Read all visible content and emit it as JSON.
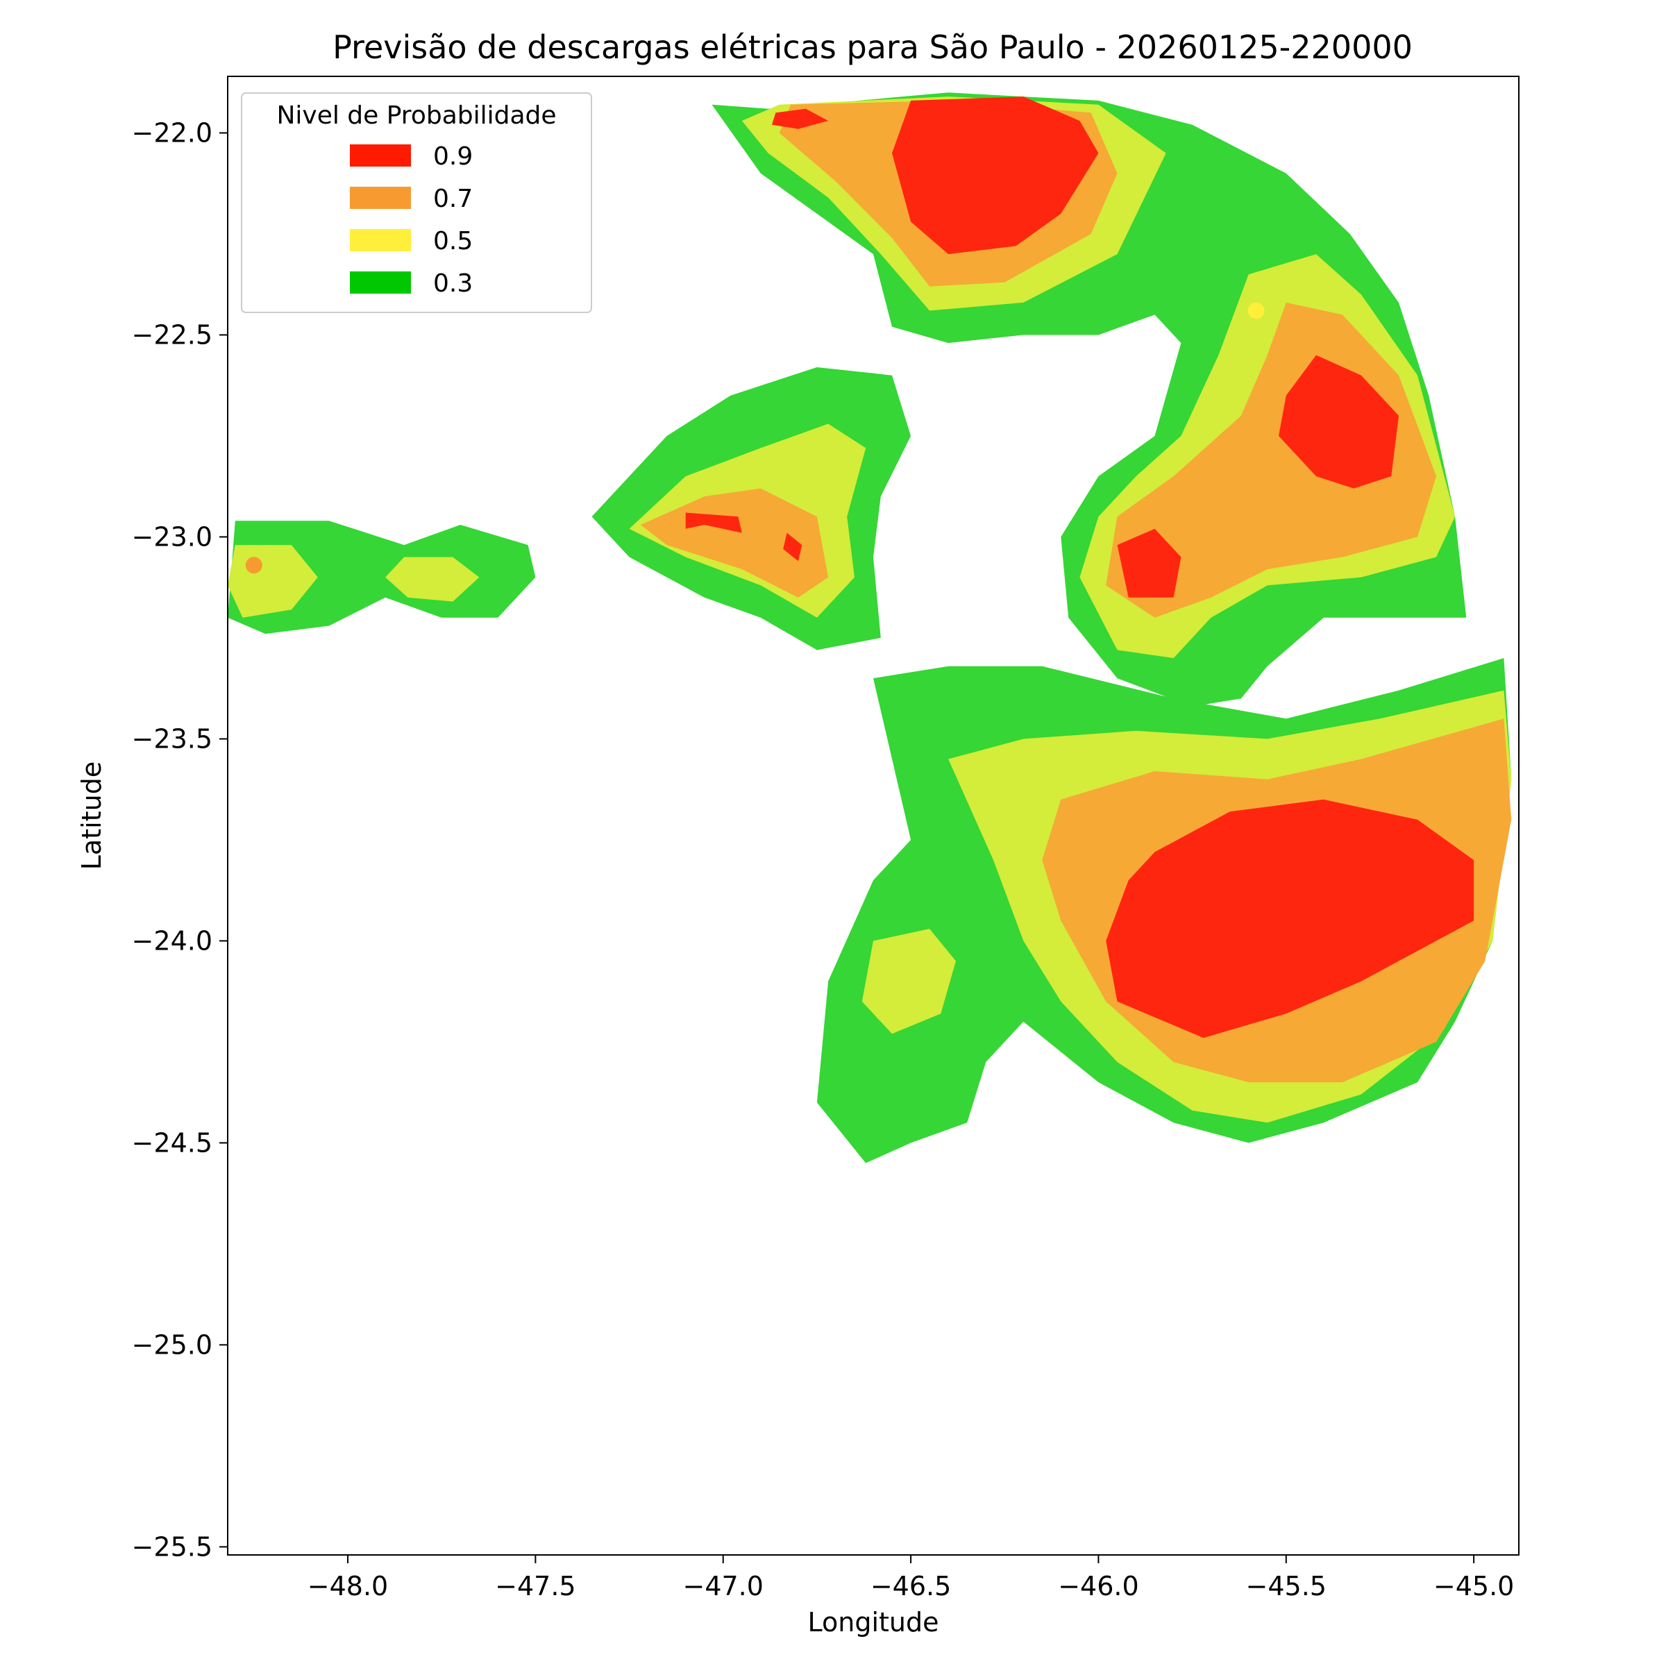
{
  "chart_data": {
    "type": "heatmap",
    "title": "Previsão de descargas elétricas para São Paulo - 20260125-220000",
    "xlabel": "Longitude",
    "ylabel": "Latitude",
    "xlim": [
      -48.32,
      -44.88
    ],
    "ylim": [
      -25.52,
      -21.86
    ],
    "x_ticks": [
      -48.0,
      -47.5,
      -47.0,
      -46.5,
      -46.0,
      -45.5,
      -45.0
    ],
    "y_ticks": [
      -22.0,
      -22.5,
      -23.0,
      -23.5,
      -24.0,
      -24.5,
      -25.0,
      -25.5
    ],
    "x_tick_labels": [
      "−48.0",
      "−47.5",
      "−47.0",
      "−46.5",
      "−46.0",
      "−45.5",
      "−45.0"
    ],
    "y_tick_labels": [
      "−22.0",
      "−22.5",
      "−23.0",
      "−23.5",
      "−24.0",
      "−24.5",
      "−25.0",
      "−25.5"
    ],
    "grid": false,
    "legend": {
      "title": "Nivel de Probabilidade",
      "placement": "top-left",
      "entries": [
        {
          "label": "0.9",
          "color": "#ff1a00"
        },
        {
          "label": "0.7",
          "color": "#f79a30"
        },
        {
          "label": "0.5",
          "color": "#ffee3a"
        },
        {
          "label": "0.3",
          "color": "#00c800"
        }
      ]
    },
    "fill_colors": {
      "0.3": "#35d635",
      "0.5": "#d4ec3a",
      "0.7": "#f6a935",
      "0.9": "#ff260f"
    },
    "regions": [
      {
        "level": "0.3",
        "points": [
          [
            -46.88,
            -21.94
          ],
          [
            -46.4,
            -21.9
          ],
          [
            -46.0,
            -21.92
          ],
          [
            -45.75,
            -21.98
          ],
          [
            -45.5,
            -22.1
          ],
          [
            -45.33,
            -22.25
          ],
          [
            -45.2,
            -22.42
          ],
          [
            -45.12,
            -22.65
          ],
          [
            -45.05,
            -22.95
          ],
          [
            -45.02,
            -23.2
          ],
          [
            -45.4,
            -23.2
          ],
          [
            -45.55,
            -23.32
          ],
          [
            -45.62,
            -23.4
          ],
          [
            -45.75,
            -23.42
          ],
          [
            -45.95,
            -23.35
          ],
          [
            -46.08,
            -23.2
          ],
          [
            -46.1,
            -23.0
          ],
          [
            -46.0,
            -22.85
          ],
          [
            -45.85,
            -22.75
          ],
          [
            -45.78,
            -22.52
          ],
          [
            -45.85,
            -22.45
          ],
          [
            -46.0,
            -22.5
          ],
          [
            -46.2,
            -22.5
          ],
          [
            -46.4,
            -22.52
          ],
          [
            -46.55,
            -22.48
          ],
          [
            -46.6,
            -22.3
          ],
          [
            -46.75,
            -22.2
          ],
          [
            -46.9,
            -22.1
          ],
          [
            -47.03,
            -21.93
          ]
        ]
      },
      {
        "level": "0.5",
        "points": [
          [
            -46.85,
            -21.93
          ],
          [
            -46.4,
            -21.91
          ],
          [
            -46.0,
            -21.93
          ],
          [
            -45.82,
            -22.05
          ],
          [
            -45.95,
            -22.3
          ],
          [
            -46.2,
            -22.42
          ],
          [
            -46.45,
            -22.44
          ],
          [
            -46.58,
            -22.3
          ],
          [
            -46.72,
            -22.16
          ],
          [
            -46.88,
            -22.05
          ],
          [
            -46.95,
            -21.97
          ]
        ]
      },
      {
        "level": "0.7",
        "points": [
          [
            -46.82,
            -21.93
          ],
          [
            -46.4,
            -21.92
          ],
          [
            -46.02,
            -21.95
          ],
          [
            -45.95,
            -22.1
          ],
          [
            -46.02,
            -22.25
          ],
          [
            -46.25,
            -22.37
          ],
          [
            -46.45,
            -22.38
          ],
          [
            -46.55,
            -22.26
          ],
          [
            -46.7,
            -22.12
          ],
          [
            -46.85,
            -22.0
          ]
        ]
      },
      {
        "level": "0.9",
        "points": [
          [
            -46.5,
            -21.92
          ],
          [
            -46.2,
            -21.91
          ],
          [
            -46.05,
            -21.97
          ],
          [
            -46.0,
            -22.05
          ],
          [
            -46.1,
            -22.2
          ],
          [
            -46.22,
            -22.28
          ],
          [
            -46.4,
            -22.3
          ],
          [
            -46.5,
            -22.22
          ],
          [
            -46.55,
            -22.05
          ]
        ]
      },
      {
        "level": "0.9",
        "points": [
          [
            -46.86,
            -21.95
          ],
          [
            -46.78,
            -21.94
          ],
          [
            -46.72,
            -21.97
          ],
          [
            -46.8,
            -21.99
          ],
          [
            -46.87,
            -21.98
          ]
        ]
      },
      {
        "level": "0.5",
        "points": [
          [
            -45.6,
            -22.35
          ],
          [
            -45.42,
            -22.3
          ],
          [
            -45.3,
            -22.4
          ],
          [
            -45.15,
            -22.6
          ],
          [
            -45.05,
            -22.95
          ],
          [
            -45.1,
            -23.05
          ],
          [
            -45.3,
            -23.1
          ],
          [
            -45.55,
            -23.12
          ],
          [
            -45.7,
            -23.2
          ],
          [
            -45.8,
            -23.3
          ],
          [
            -45.95,
            -23.28
          ],
          [
            -46.05,
            -23.1
          ],
          [
            -46.0,
            -22.95
          ],
          [
            -45.9,
            -22.85
          ],
          [
            -45.78,
            -22.75
          ],
          [
            -45.68,
            -22.55
          ]
        ]
      },
      {
        "level": "0.7",
        "points": [
          [
            -45.5,
            -22.42
          ],
          [
            -45.35,
            -22.45
          ],
          [
            -45.2,
            -22.6
          ],
          [
            -45.1,
            -22.85
          ],
          [
            -45.15,
            -23.0
          ],
          [
            -45.35,
            -23.05
          ],
          [
            -45.55,
            -23.08
          ],
          [
            -45.7,
            -23.15
          ],
          [
            -45.85,
            -23.2
          ],
          [
            -45.98,
            -23.12
          ],
          [
            -45.95,
            -22.95
          ],
          [
            -45.8,
            -22.85
          ],
          [
            -45.62,
            -22.7
          ],
          [
            -45.55,
            -22.55
          ]
        ]
      },
      {
        "level": "0.9",
        "points": [
          [
            -45.42,
            -22.55
          ],
          [
            -45.3,
            -22.6
          ],
          [
            -45.2,
            -22.7
          ],
          [
            -45.22,
            -22.85
          ],
          [
            -45.32,
            -22.88
          ],
          [
            -45.42,
            -22.85
          ],
          [
            -45.52,
            -22.75
          ],
          [
            -45.5,
            -22.65
          ]
        ]
      },
      {
        "level": "0.9",
        "points": [
          [
            -45.85,
            -22.98
          ],
          [
            -45.95,
            -23.02
          ],
          [
            -45.92,
            -23.15
          ],
          [
            -45.8,
            -23.15
          ],
          [
            -45.78,
            -23.05
          ]
        ]
      },
      {
        "level": "0.3",
        "points": [
          [
            -46.6,
            -23.35
          ],
          [
            -46.4,
            -23.32
          ],
          [
            -46.15,
            -23.32
          ],
          [
            -45.8,
            -23.4
          ],
          [
            -45.5,
            -23.45
          ],
          [
            -45.2,
            -23.38
          ],
          [
            -44.92,
            -23.3
          ],
          [
            -44.9,
            -23.6
          ],
          [
            -44.95,
            -24.0
          ],
          [
            -45.05,
            -24.2
          ],
          [
            -45.15,
            -24.35
          ],
          [
            -45.4,
            -24.45
          ],
          [
            -45.6,
            -24.5
          ],
          [
            -45.8,
            -24.45
          ],
          [
            -46.0,
            -24.35
          ],
          [
            -46.2,
            -24.2
          ],
          [
            -46.3,
            -24.3
          ],
          [
            -46.35,
            -24.45
          ],
          [
            -46.5,
            -24.5
          ],
          [
            -46.62,
            -24.55
          ],
          [
            -46.75,
            -24.4
          ],
          [
            -46.72,
            -24.1
          ],
          [
            -46.6,
            -23.85
          ],
          [
            -46.5,
            -23.75
          ]
        ]
      },
      {
        "level": "0.5",
        "points": [
          [
            -46.4,
            -23.55
          ],
          [
            -46.2,
            -23.5
          ],
          [
            -45.9,
            -23.48
          ],
          [
            -45.55,
            -23.5
          ],
          [
            -45.25,
            -23.45
          ],
          [
            -44.92,
            -23.38
          ],
          [
            -44.9,
            -23.6
          ],
          [
            -44.95,
            -24.0
          ],
          [
            -45.08,
            -24.22
          ],
          [
            -45.3,
            -24.38
          ],
          [
            -45.55,
            -24.45
          ],
          [
            -45.75,
            -24.42
          ],
          [
            -45.95,
            -24.3
          ],
          [
            -46.1,
            -24.15
          ],
          [
            -46.2,
            -24.0
          ],
          [
            -46.28,
            -23.8
          ]
        ]
      },
      {
        "level": "0.7",
        "points": [
          [
            -46.1,
            -23.65
          ],
          [
            -45.85,
            -23.58
          ],
          [
            -45.55,
            -23.6
          ],
          [
            -45.3,
            -23.55
          ],
          [
            -44.92,
            -23.45
          ],
          [
            -44.9,
            -23.7
          ],
          [
            -44.97,
            -24.05
          ],
          [
            -45.1,
            -24.25
          ],
          [
            -45.35,
            -24.35
          ],
          [
            -45.6,
            -24.35
          ],
          [
            -45.8,
            -24.3
          ],
          [
            -45.98,
            -24.15
          ],
          [
            -46.1,
            -23.95
          ],
          [
            -46.15,
            -23.8
          ]
        ]
      },
      {
        "level": "0.9",
        "points": [
          [
            -45.85,
            -23.78
          ],
          [
            -45.65,
            -23.68
          ],
          [
            -45.4,
            -23.65
          ],
          [
            -45.15,
            -23.7
          ],
          [
            -45.0,
            -23.8
          ],
          [
            -45.0,
            -23.95
          ],
          [
            -45.1,
            -24.0
          ],
          [
            -45.3,
            -24.1
          ],
          [
            -45.5,
            -24.18
          ],
          [
            -45.72,
            -24.24
          ],
          [
            -45.95,
            -24.15
          ],
          [
            -45.98,
            -24.0
          ],
          [
            -45.92,
            -23.85
          ]
        ]
      },
      {
        "level": "0.5",
        "points": [
          [
            -46.6,
            -24.0
          ],
          [
            -46.45,
            -23.97
          ],
          [
            -46.38,
            -24.05
          ],
          [
            -46.42,
            -24.18
          ],
          [
            -46.55,
            -24.23
          ],
          [
            -46.63,
            -24.15
          ]
        ]
      },
      {
        "level": "0.3",
        "points": [
          [
            -47.15,
            -22.75
          ],
          [
            -46.98,
            -22.65
          ],
          [
            -46.75,
            -22.58
          ],
          [
            -46.55,
            -22.6
          ],
          [
            -46.5,
            -22.75
          ],
          [
            -46.58,
            -22.9
          ],
          [
            -46.6,
            -23.05
          ],
          [
            -46.58,
            -23.25
          ],
          [
            -46.75,
            -23.28
          ],
          [
            -46.9,
            -23.2
          ],
          [
            -47.05,
            -23.15
          ],
          [
            -47.25,
            -23.05
          ],
          [
            -47.35,
            -22.95
          ],
          [
            -47.25,
            -22.85
          ]
        ]
      },
      {
        "level": "0.5",
        "points": [
          [
            -47.1,
            -22.85
          ],
          [
            -46.9,
            -22.78
          ],
          [
            -46.72,
            -22.72
          ],
          [
            -46.62,
            -22.78
          ],
          [
            -46.67,
            -22.95
          ],
          [
            -46.65,
            -23.1
          ],
          [
            -46.75,
            -23.2
          ],
          [
            -46.9,
            -23.12
          ],
          [
            -47.1,
            -23.05
          ],
          [
            -47.25,
            -22.98
          ]
        ]
      },
      {
        "level": "0.7",
        "points": [
          [
            -47.05,
            -22.9
          ],
          [
            -46.9,
            -22.88
          ],
          [
            -46.75,
            -22.95
          ],
          [
            -46.72,
            -23.1
          ],
          [
            -46.8,
            -23.15
          ],
          [
            -46.95,
            -23.08
          ],
          [
            -47.15,
            -23.02
          ],
          [
            -47.22,
            -22.97
          ]
        ]
      },
      {
        "level": "0.9",
        "points": [
          [
            -47.1,
            -22.94
          ],
          [
            -46.96,
            -22.95
          ],
          [
            -46.95,
            -22.99
          ],
          [
            -47.05,
            -22.97
          ],
          [
            -47.1,
            -22.98
          ]
        ]
      },
      {
        "level": "0.9",
        "points": [
          [
            -46.83,
            -22.99
          ],
          [
            -46.79,
            -23.02
          ],
          [
            -46.8,
            -23.06
          ],
          [
            -46.84,
            -23.03
          ]
        ]
      },
      {
        "level": "0.3",
        "points": [
          [
            -48.3,
            -22.96
          ],
          [
            -48.05,
            -22.96
          ],
          [
            -47.85,
            -23.02
          ],
          [
            -47.7,
            -22.97
          ],
          [
            -47.52,
            -23.02
          ],
          [
            -47.5,
            -23.1
          ],
          [
            -47.6,
            -23.2
          ],
          [
            -47.75,
            -23.2
          ],
          [
            -47.9,
            -23.15
          ],
          [
            -48.05,
            -23.22
          ],
          [
            -48.22,
            -23.24
          ],
          [
            -48.32,
            -23.2
          ]
        ]
      },
      {
        "level": "0.5",
        "points": [
          [
            -48.3,
            -23.02
          ],
          [
            -48.15,
            -23.02
          ],
          [
            -48.08,
            -23.1
          ],
          [
            -48.15,
            -23.18
          ],
          [
            -48.28,
            -23.2
          ],
          [
            -48.32,
            -23.12
          ]
        ]
      },
      {
        "level": "0.5",
        "points": [
          [
            -47.85,
            -23.05
          ],
          [
            -47.72,
            -23.05
          ],
          [
            -47.65,
            -23.1
          ],
          [
            -47.72,
            -23.16
          ],
          [
            -47.84,
            -23.15
          ],
          [
            -47.9,
            -23.1
          ]
        ]
      }
    ],
    "markers": [
      {
        "level": "0.7",
        "lon": -48.25,
        "lat": -23.07,
        "color": "#f79a30"
      },
      {
        "level": "0.5",
        "lon": -45.58,
        "lat": -22.44,
        "color": "#ffee3a"
      }
    ]
  }
}
